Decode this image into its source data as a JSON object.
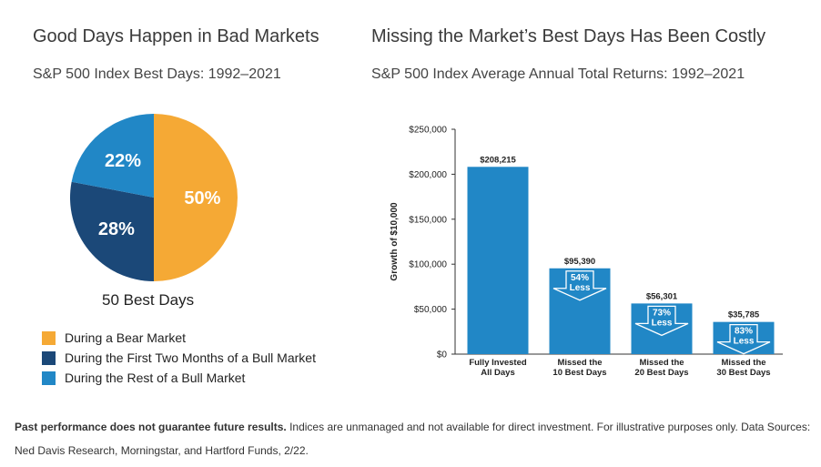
{
  "left_panel": {
    "title": "Good Days Happen in Bad Markets",
    "subtitle": "S&P 500 Index Best Days: 1992–2021",
    "caption": "50 Best Days"
  },
  "right_panel": {
    "title": "Missing the Market’s Best Days Has Been Costly",
    "subtitle": "S&P 500 Index Average Annual Total Returns: 1992–2021"
  },
  "footer": {
    "bold": "Past performance does not guarantee future results.",
    "text": " Indices are unmanaged and not available for direct investment. For illustrative purposes only. Data Sources: Ned Davis Research, Morningstar, and Hartford Funds, 2/22."
  },
  "chart_data": [
    {
      "type": "pie",
      "categories": [
        "During a Bear Market",
        "During the First Two Months of a Bull Market",
        "During the Rest of a Bull Market"
      ],
      "values": [
        50,
        28,
        22
      ],
      "labels": [
        "50%",
        "28%",
        "22%"
      ],
      "colors": [
        "#f5a935",
        "#1b4878",
        "#2187c6"
      ],
      "title": "S&P 500 Index Best Days: 1992–2021",
      "legend_position": "bottom"
    },
    {
      "type": "bar",
      "categories": [
        [
          "Fully Invested",
          "All Days"
        ],
        [
          "Missed the",
          "10 Best Days"
        ],
        [
          "Missed the",
          "20 Best Days"
        ],
        [
          "Missed the",
          "30 Best Days"
        ]
      ],
      "values": [
        208215,
        95390,
        56301,
        35785
      ],
      "value_labels": [
        "$208,215",
        "$95,390",
        "$56,301",
        "$35,785"
      ],
      "decline_labels": [
        null,
        [
          "54%",
          "Less"
        ],
        [
          "73%",
          "Less"
        ],
        [
          "83%",
          "Less"
        ]
      ],
      "ylabel": "Growth of $10,000",
      "ylim": [
        0,
        250000
      ],
      "yticks": [
        0,
        50000,
        100000,
        150000,
        200000,
        250000
      ],
      "ytick_labels": [
        "$0",
        "$50,000",
        "$100,000",
        "$150,000",
        "$200,000",
        "$250,000"
      ],
      "bar_color": "#2187c6",
      "grid": false
    }
  ]
}
